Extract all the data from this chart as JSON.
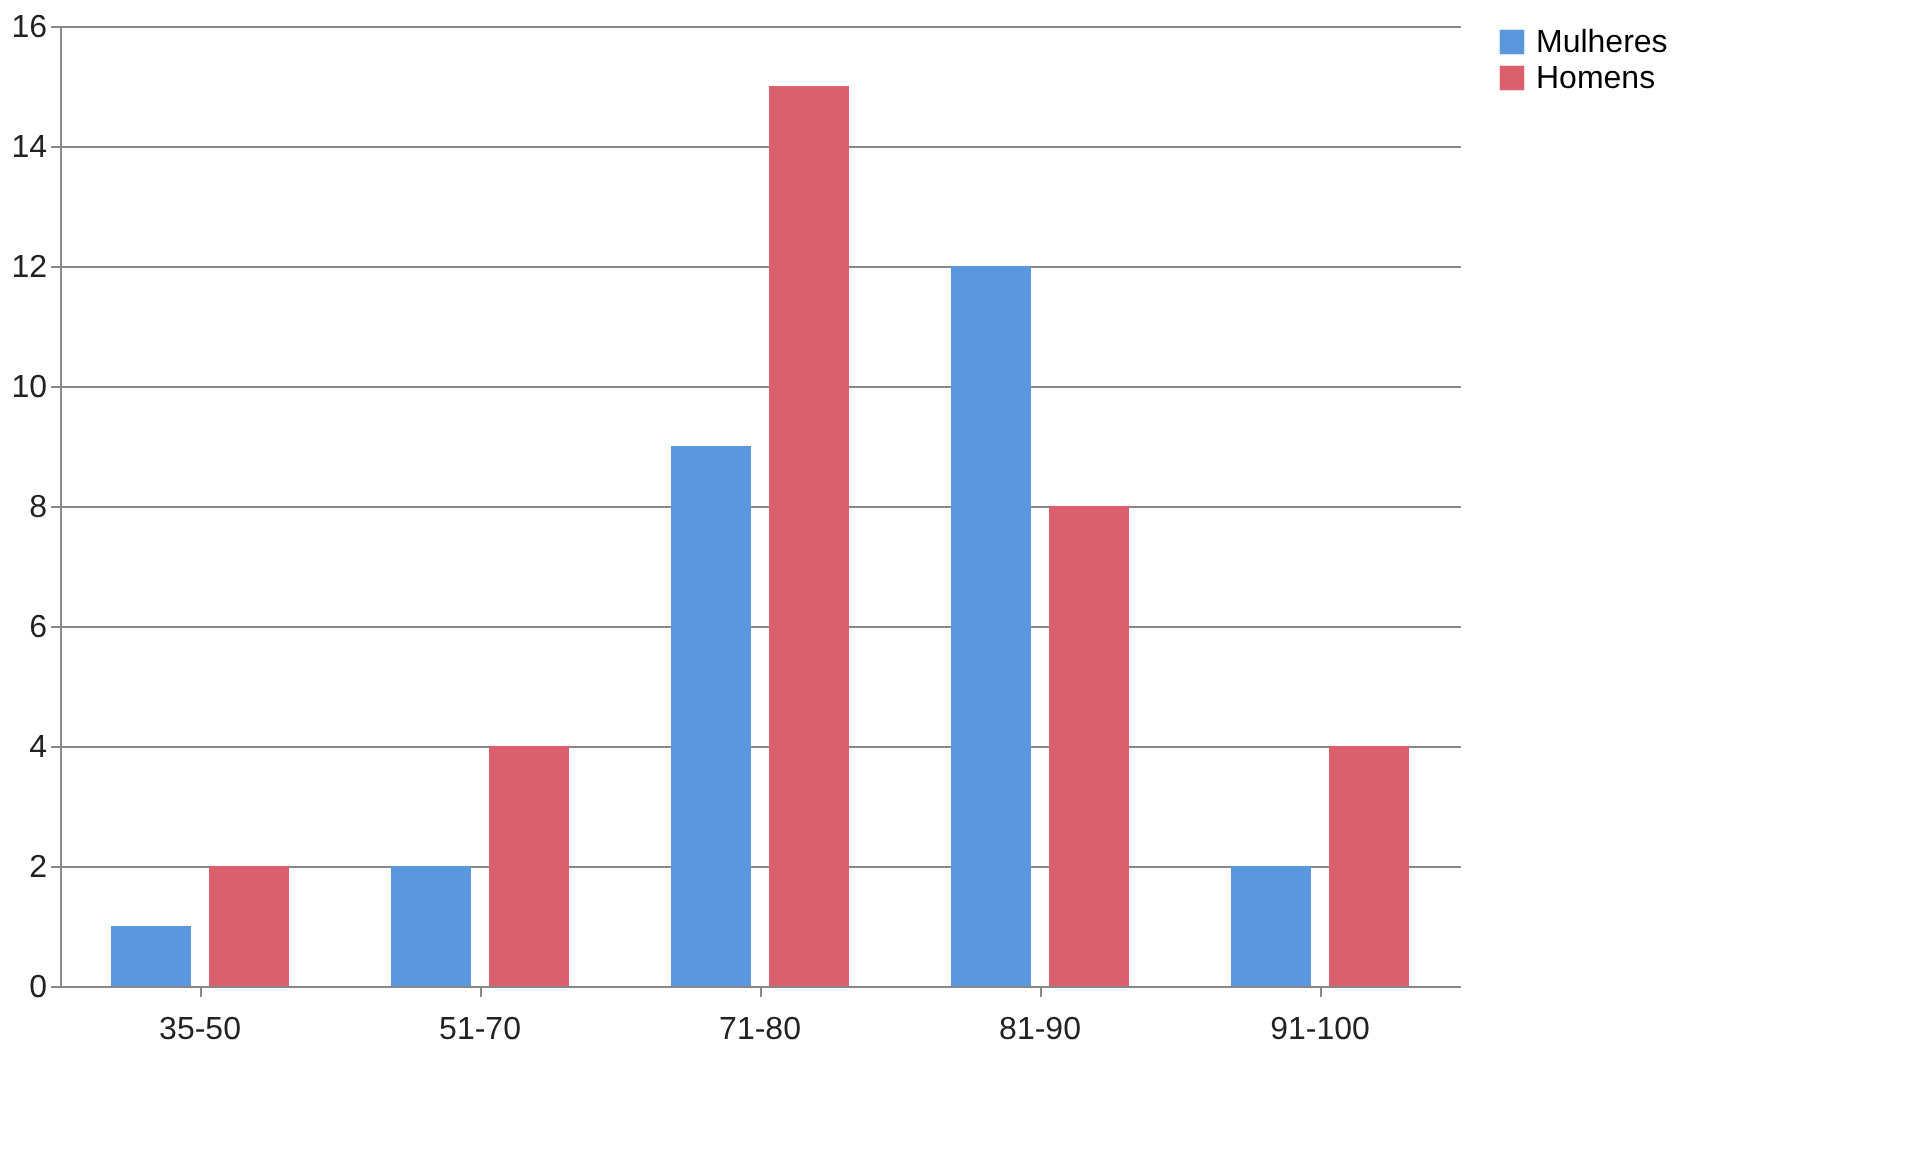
{
  "chart_data": {
    "type": "bar",
    "categories": [
      "35-50",
      "51-70",
      "71-80",
      "81-90",
      "91-100"
    ],
    "series": [
      {
        "name": "Mulheres",
        "color": "#5a97dc",
        "values": [
          1,
          2,
          9,
          12,
          2
        ]
      },
      {
        "name": "Homens",
        "color": "#d9606c",
        "values": [
          2,
          4,
          15,
          8,
          4
        ]
      }
    ],
    "ylim": [
      0,
      16
    ],
    "yticks": [
      0,
      2,
      4,
      6,
      8,
      10,
      12,
      14,
      16
    ],
    "grid": "y",
    "legend": "right"
  }
}
